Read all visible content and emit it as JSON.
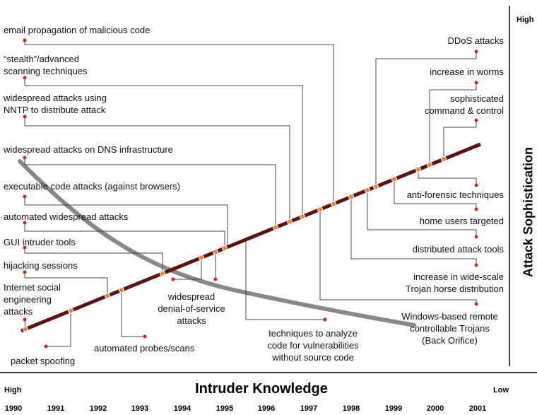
{
  "axes": {
    "y_title": "Attack Sophistication",
    "y_high": "High",
    "x_title": "Intruder Knowledge",
    "x_high": "High",
    "x_low": "Low"
  },
  "years": [
    "1990",
    "1991",
    "1992",
    "1993",
    "1994",
    "1995",
    "1996",
    "1997",
    "1998",
    "1999",
    "2000",
    "2001"
  ],
  "labels": {
    "email_propagation": "email propagation of malicious code",
    "stealth_scanning": "“stealth”/advanced\nscanning techniques",
    "nntp_attacks": "widespread attacks using\nNNTP to distribute attack",
    "dns_attacks": "widespread attacks on DNS infrastructure",
    "executable_code": "executable code attacks (against browsers)",
    "automated_widespread": "automated widespread attacks",
    "gui_tools": "GUI intruder tools",
    "hijacking": "hijacking sessions",
    "social_engineering": "Internet social\nengineering\nattacks",
    "packet_spoofing": "packet spoofing",
    "automated_probes": "automated probes/scans",
    "widespread_dos": "widespread\ndenial-of-service\nattacks",
    "analyze_code": "techniques to analyze\ncode for vulnerabilities\nwithout source code",
    "ddos": "DDoS attacks",
    "worms": "increase in worms",
    "command_control": "sophisticated\ncommand & control",
    "anti_forensic": "anti-forensic techniques",
    "home_users": "home users targeted",
    "distributed_tools": "distributed attack tools",
    "trojan_distribution": "increase in wide-scale\nTrojan horse distribution",
    "windows_trojans": "Windows-based remote\ncontrollable Trojans\n(Back Orifice)"
  },
  "colors": {
    "trend_line": "#5a1212",
    "knowledge_curve": "#888888",
    "marker_fill": "#e8833a",
    "pin_dot": "#d42020",
    "connector": "#444444"
  }
}
